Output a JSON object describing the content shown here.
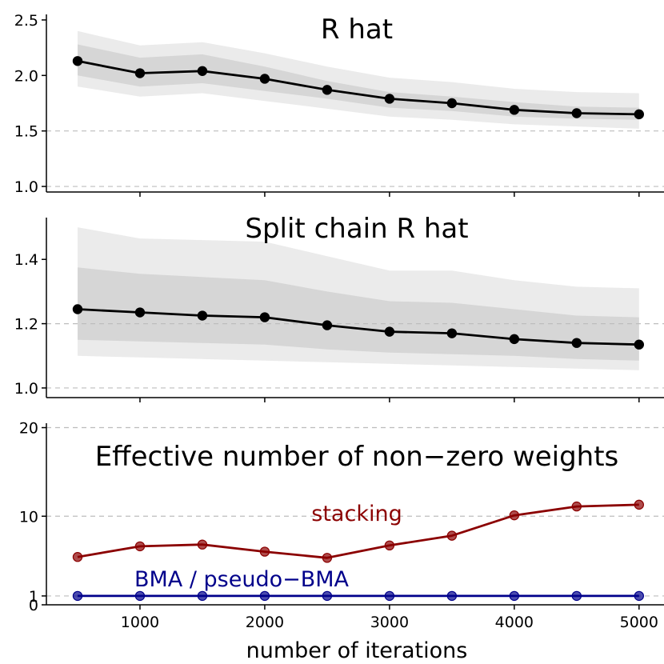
{
  "chart_data": [
    {
      "type": "line",
      "title": "R hat",
      "x": [
        500,
        1000,
        1500,
        2000,
        2500,
        3000,
        3500,
        4000,
        4500,
        5000
      ],
      "median": [
        2.13,
        2.02,
        2.04,
        1.97,
        1.87,
        1.79,
        1.75,
        1.69,
        1.66,
        1.65
      ],
      "inner_band": {
        "lower": [
          2.0,
          1.9,
          1.93,
          1.86,
          1.79,
          1.71,
          1.68,
          1.63,
          1.61,
          1.6
        ],
        "upper": [
          2.28,
          2.16,
          2.19,
          2.08,
          1.95,
          1.85,
          1.81,
          1.76,
          1.72,
          1.71
        ]
      },
      "outer_band": {
        "lower": [
          1.9,
          1.81,
          1.84,
          1.77,
          1.7,
          1.63,
          1.6,
          1.56,
          1.54,
          1.52
        ],
        "upper": [
          2.4,
          2.27,
          2.3,
          2.2,
          2.08,
          1.98,
          1.94,
          1.88,
          1.85,
          1.84
        ]
      },
      "reference_lines": [
        1.0,
        1.5
      ],
      "ylim": [
        0.95,
        2.55
      ],
      "yticks": [
        "1.0",
        "1.5",
        "2.0",
        "2.5"
      ]
    },
    {
      "type": "line",
      "title": "Split chain R hat",
      "x": [
        500,
        1000,
        1500,
        2000,
        2500,
        3000,
        3500,
        4000,
        4500,
        5000
      ],
      "median": [
        1.245,
        1.235,
        1.225,
        1.22,
        1.195,
        1.175,
        1.17,
        1.152,
        1.14,
        1.135
      ],
      "inner_band": {
        "lower": [
          1.15,
          1.145,
          1.14,
          1.135,
          1.12,
          1.11,
          1.105,
          1.1,
          1.09,
          1.085
        ],
        "upper": [
          1.375,
          1.355,
          1.345,
          1.335,
          1.3,
          1.27,
          1.265,
          1.245,
          1.225,
          1.22
        ]
      },
      "outer_band": {
        "lower": [
          1.1,
          1.095,
          1.09,
          1.085,
          1.08,
          1.075,
          1.07,
          1.065,
          1.06,
          1.055
        ],
        "upper": [
          1.5,
          1.465,
          1.46,
          1.455,
          1.41,
          1.365,
          1.365,
          1.335,
          1.315,
          1.31
        ]
      },
      "reference_lines": [
        1.0,
        1.2
      ],
      "ylim": [
        0.97,
        1.53
      ],
      "yticks": [
        "1.0",
        "1.2",
        "1.4"
      ]
    },
    {
      "type": "line",
      "title": "Effective number of non−zero weights",
      "x": [
        500,
        1000,
        1500,
        2000,
        2500,
        3000,
        3500,
        4000,
        4500,
        5000
      ],
      "series": [
        {
          "name": "stacking",
          "color": "#8b0000",
          "values": [
            5.4,
            6.6,
            6.8,
            6.0,
            5.3,
            6.7,
            7.8,
            10.1,
            11.1,
            11.3
          ]
        },
        {
          "name": "BMA / pseudo−BMA",
          "color": "#00008b",
          "values": [
            1,
            1,
            1,
            1,
            1,
            1,
            1,
            1,
            1,
            1
          ]
        }
      ],
      "reference_lines": [
        1,
        10,
        20
      ],
      "ylim": [
        0,
        20.5
      ],
      "yticks": [
        "0",
        "1",
        "10",
        "20"
      ]
    }
  ],
  "xaxis": {
    "label": "number of iterations",
    "xlim": [
      250,
      5200
    ],
    "ticks": [
      "1000",
      "2000",
      "3000",
      "4000",
      "5000"
    ]
  },
  "colors": {
    "outer_band": "#ebebeb",
    "inner_band": "#d6d6d6",
    "median_line": "#000000",
    "reference_line": "#bdbdbd"
  }
}
